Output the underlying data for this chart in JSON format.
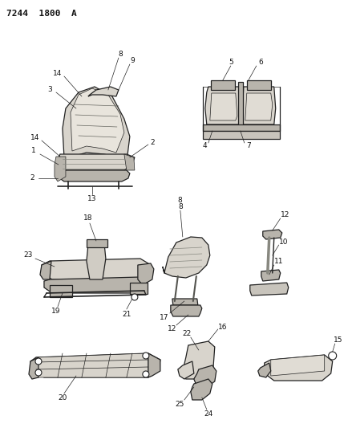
{
  "title": "7244  1800  A",
  "bg_color": "#f5f5f0",
  "fig_width": 4.29,
  "fig_height": 5.33,
  "dpi": 100,
  "white": "#ffffff",
  "black": "#111111",
  "gray_light": "#d8d4cc",
  "gray_mid": "#b8b4ac",
  "gray_dark": "#888880",
  "line_color": "#222222",
  "lw_main": 0.9,
  "lw_thin": 0.5,
  "fontsize": 6.5
}
